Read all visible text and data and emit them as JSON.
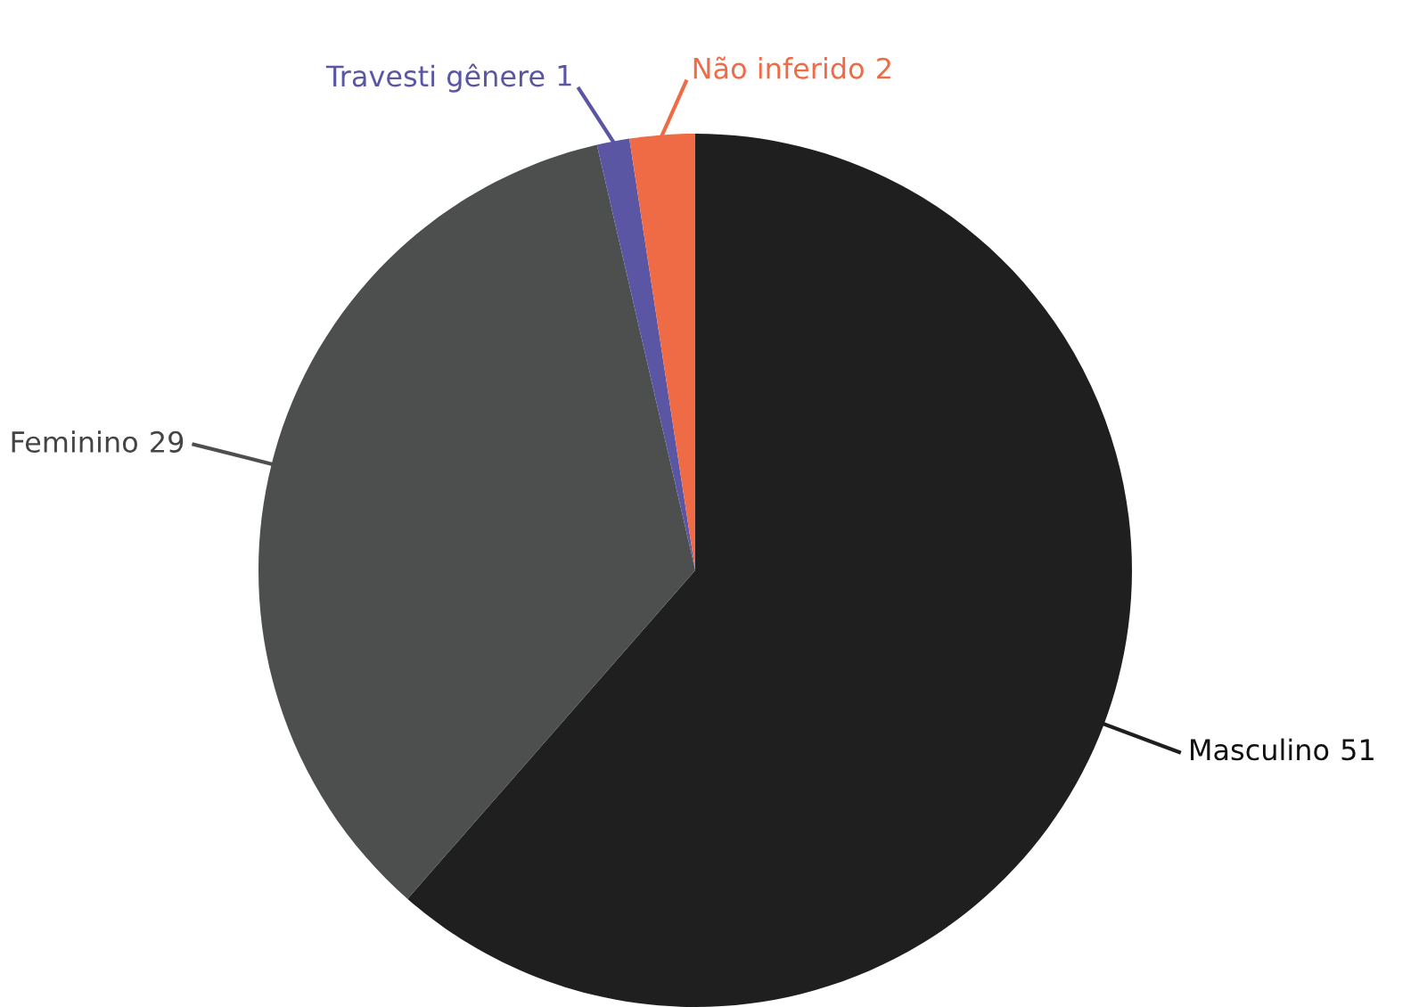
{
  "chart_data": {
    "type": "pie",
    "categories": [
      "Masculino",
      "Feminino",
      "Travesti gênere",
      "Não inferido"
    ],
    "values": [
      51,
      29,
      1,
      2
    ],
    "colors": [
      "#1e1f1e",
      "#4d4f4e",
      "#5b56a4",
      "#ef6b45"
    ],
    "data_labels": true,
    "legend": false
  }
}
